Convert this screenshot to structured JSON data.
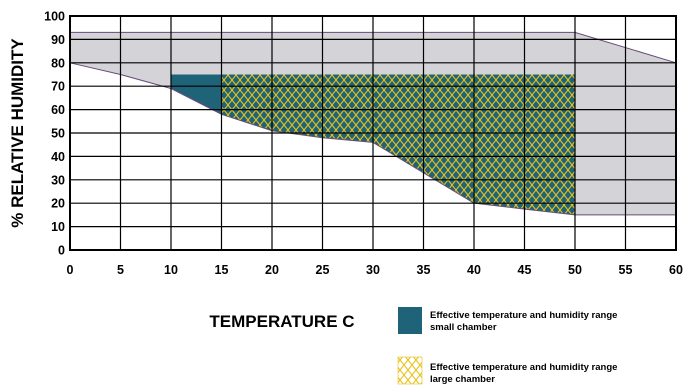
{
  "chart_data": {
    "type": "area",
    "xlabel": "TEMPERATURE C",
    "ylabel": "% RELATIVE HUMIDITY",
    "xlim": [
      0,
      60
    ],
    "ylim": [
      0,
      100
    ],
    "x_ticks": [
      0,
      5,
      10,
      15,
      20,
      25,
      30,
      35,
      40,
      45,
      50,
      55,
      60
    ],
    "y_ticks": [
      0,
      10,
      20,
      30,
      40,
      50,
      60,
      70,
      80,
      90,
      100
    ],
    "grid": true,
    "colors": {
      "envelope": "#d4d4d8",
      "small_chamber": "#1e6378",
      "large_chamber_hatch": "#e8c21a",
      "boundary": "#6b4a78"
    },
    "series": [
      {
        "role": "envelope",
        "upper": [
          [
            0,
            93
          ],
          [
            50,
            93
          ],
          [
            60,
            80
          ]
        ],
        "lower": [
          [
            0,
            80
          ],
          [
            5,
            75
          ],
          [
            10,
            69
          ],
          [
            15,
            58
          ],
          [
            20,
            51
          ],
          [
            25,
            48
          ],
          [
            30,
            46
          ],
          [
            35,
            33
          ],
          [
            40,
            20
          ],
          [
            45,
            17.5
          ],
          [
            50,
            15
          ],
          [
            60,
            15
          ]
        ]
      },
      {
        "name": "Effective temperature and humidity range small chamber",
        "upper": [
          [
            10,
            75
          ],
          [
            50,
            75
          ]
        ],
        "lower": [
          [
            10,
            69
          ],
          [
            15,
            58
          ],
          [
            20,
            51
          ],
          [
            25,
            48
          ],
          [
            30,
            46
          ],
          [
            35,
            33
          ],
          [
            40,
            20
          ],
          [
            45,
            17.5
          ],
          [
            50,
            15
          ]
        ]
      },
      {
        "name": "Effective temperature and humidity range large chamber",
        "upper": [
          [
            15,
            75
          ],
          [
            50,
            75
          ]
        ],
        "lower": [
          [
            15,
            58
          ],
          [
            20,
            51
          ],
          [
            25,
            48
          ],
          [
            30,
            46
          ],
          [
            35,
            33
          ],
          [
            40,
            20
          ],
          [
            45,
            17.5
          ],
          [
            50,
            15
          ]
        ]
      }
    ],
    "legend": {
      "placement": "bottom-right",
      "small_line1": "Effective temperature and humidity range",
      "small_line2": "small chamber",
      "large_line1": "Effective temperature and humidity range",
      "large_line2": "large chamber"
    }
  }
}
